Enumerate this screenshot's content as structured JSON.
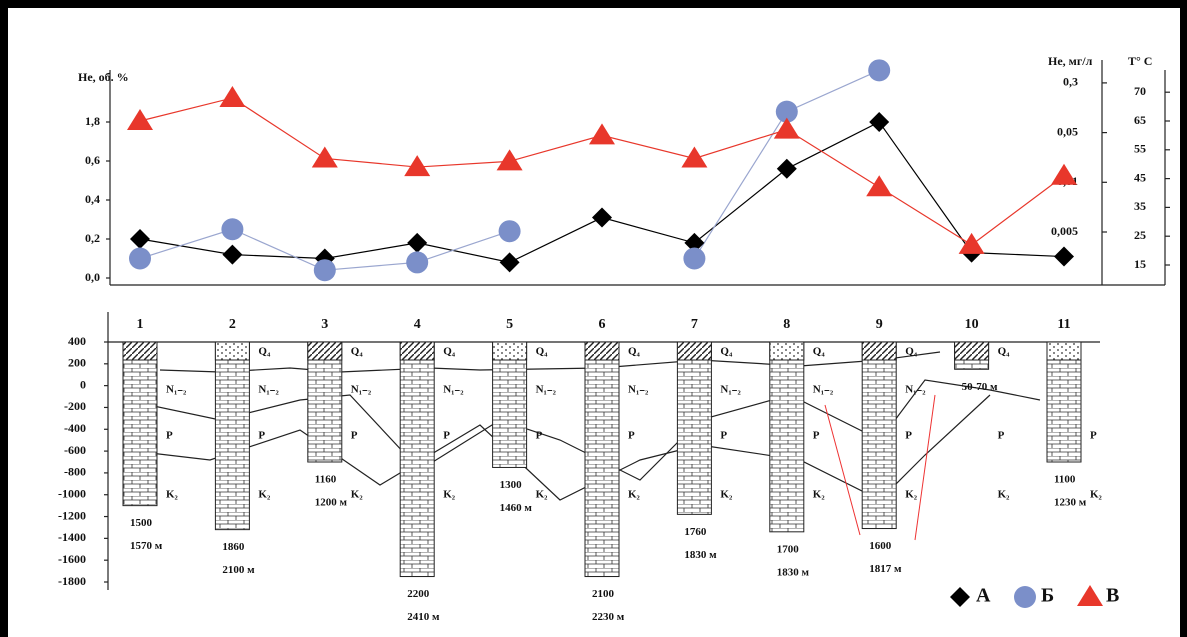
{
  "chart_data": [
    {
      "type": "line",
      "ylabel": "He, об. %",
      "y2label": "T° C",
      "y3label": "He, мг/л",
      "ylim": [
        0,
        3.6
      ],
      "yticks": [
        {
          "value": 0,
          "label": "0,0"
        },
        {
          "value": 0.2,
          "label": "0,2"
        },
        {
          "value": 0.4,
          "label": "0,4"
        },
        {
          "value": 0.6,
          "label": "0,6"
        },
        {
          "value": 1.8,
          "label": "1,8"
        }
      ],
      "y2lim": [
        15,
        75
      ],
      "y2ticks": [
        15,
        25,
        35,
        45,
        55,
        65,
        70
      ],
      "y3ticks": [
        {
          "value": 0.005,
          "label": "0,005"
        },
        {
          "value": 0.01,
          "label": "0,01"
        },
        {
          "value": 0.05,
          "label": "0,05"
        },
        {
          "value": 0.3,
          "label": "0,3"
        }
      ],
      "series": [
        {
          "name": "А",
          "marker": "diamond",
          "color": "#000000",
          "line_color": "#000000",
          "values": [
            0.2,
            0.12,
            0.1,
            0.18,
            0.08,
            0.31,
            0.18,
            0.56,
            1.8,
            0.13,
            0.11
          ]
        },
        {
          "name": "Б",
          "marker": "circle",
          "color": "#7b8fc9",
          "line_color": "#9aa6cf",
          "values": [
            0.1,
            0.25,
            0.04,
            0.08,
            0.24,
            null,
            0.1,
            2.1,
            3.3,
            null,
            null
          ]
        },
        {
          "name": "В",
          "marker": "triangle",
          "color": "#e8372b",
          "line_color": "#e8372b",
          "axis": "y2",
          "values": [
            65,
            69,
            52,
            49,
            51,
            60,
            52,
            62,
            42,
            22,
            46
          ]
        }
      ]
    },
    {
      "type": "bar",
      "categories": [
        "1",
        "2",
        "3",
        "4",
        "5",
        "6",
        "7",
        "8",
        "9",
        "10",
        "11"
      ],
      "values": [
        -1100,
        -1320,
        -700,
        -1750,
        -750,
        -1750,
        -1180,
        -1340,
        -1310,
        150,
        -700
      ],
      "ylim": [
        -1800,
        400
      ],
      "yticks": [
        400,
        200,
        0,
        -200,
        -400,
        -600,
        -800,
        -1000,
        -1200,
        -1400,
        -1600,
        -1800
      ],
      "well_labels": [
        [
          "1500",
          "1570 м"
        ],
        [
          "1860",
          "2100 м"
        ],
        [
          "1160",
          "1200 м"
        ],
        [
          "2200",
          "2410 м"
        ],
        [
          "1300",
          "1460 м"
        ],
        [
          "2100",
          "2230 м"
        ],
        [
          "1760",
          "1830 м"
        ],
        [
          "1700",
          "1830 м"
        ],
        [
          "1600",
          "1817 м"
        ],
        [
          "50-70 м"
        ],
        [
          "1100",
          "1230 м"
        ]
      ],
      "strata": [
        [
          "N₁₋₂",
          "P",
          "K₂"
        ],
        [
          "Q₄",
          "N₁₋₂",
          "P",
          "K₂"
        ],
        [
          "Q₄",
          "N₁₋₂",
          "P",
          "K₂"
        ],
        [
          "Q₄",
          "N₁₋₂",
          "P",
          "K₂"
        ],
        [
          "Q₄",
          "N₁₋₂",
          "P",
          "K₂"
        ],
        [
          "Q₄",
          "N₁₋₂",
          "P",
          "K₂"
        ],
        [
          "Q₄",
          "N₁₋₂",
          "P",
          "K₂"
        ],
        [
          "Q₄",
          "N₁₋₂",
          "P",
          "K₂"
        ],
        [
          "Q₄",
          "N₁₋₂",
          "P",
          "K₂"
        ],
        [
          "Q₄",
          "P",
          "K₂"
        ],
        [
          "P",
          "K₂"
        ]
      ]
    }
  ]
}
